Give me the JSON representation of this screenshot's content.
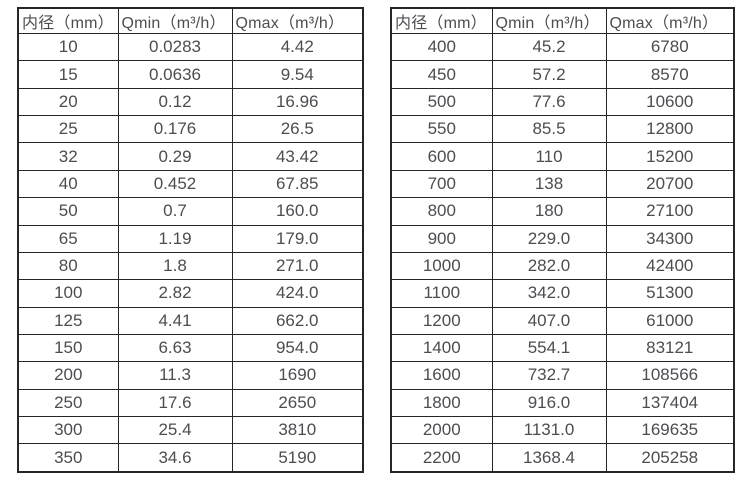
{
  "colors": {
    "background": "#ffffff",
    "table_border": "#262626",
    "text": "#4c4d51"
  },
  "tables": [
    {
      "title": "small-diameter-flow-range",
      "headers": [
        "内径（mm）",
        "Qmin（m³/h）",
        "Qmax（m³/h）"
      ],
      "rows": [
        [
          "10",
          "0.0283",
          "4.42"
        ],
        [
          "15",
          "0.0636",
          "9.54"
        ],
        [
          "20",
          "0.12",
          "16.96"
        ],
        [
          "25",
          "0.176",
          "26.5"
        ],
        [
          "32",
          "0.29",
          "43.42"
        ],
        [
          "40",
          "0.452",
          "67.85"
        ],
        [
          "50",
          "0.7",
          "160.0"
        ],
        [
          "65",
          "1.19",
          "179.0"
        ],
        [
          "80",
          "1.8",
          "271.0"
        ],
        [
          "100",
          "2.82",
          "424.0"
        ],
        [
          "125",
          "4.41",
          "662.0"
        ],
        [
          "150",
          "6.63",
          "954.0"
        ],
        [
          "200",
          "11.3",
          "1690"
        ],
        [
          "250",
          "17.6",
          "2650"
        ],
        [
          "300",
          "25.4",
          "3810"
        ],
        [
          "350",
          "34.6",
          "5190"
        ]
      ]
    },
    {
      "title": "large-diameter-flow-range",
      "headers": [
        "内径（mm）",
        "Qmin（m³/h）",
        "Qmax（m³/h）"
      ],
      "rows": [
        [
          "400",
          "45.2",
          "6780"
        ],
        [
          "450",
          "57.2",
          "8570"
        ],
        [
          "500",
          "77.6",
          "10600"
        ],
        [
          "550",
          "85.5",
          "12800"
        ],
        [
          "600",
          "110",
          "15200"
        ],
        [
          "700",
          "138",
          "20700"
        ],
        [
          "800",
          "180",
          "27100"
        ],
        [
          "900",
          "229.0",
          "34300"
        ],
        [
          "1000",
          "282.0",
          "42400"
        ],
        [
          "1100",
          "342.0",
          "51300"
        ],
        [
          "1200",
          "407.0",
          "61000"
        ],
        [
          "1400",
          "554.1",
          "83121"
        ],
        [
          "1600",
          "732.7",
          "108566"
        ],
        [
          "1800",
          "916.0",
          "137404"
        ],
        [
          "2000",
          "1131.0",
          "169635"
        ],
        [
          "2200",
          "1368.4",
          "205258"
        ]
      ]
    }
  ]
}
